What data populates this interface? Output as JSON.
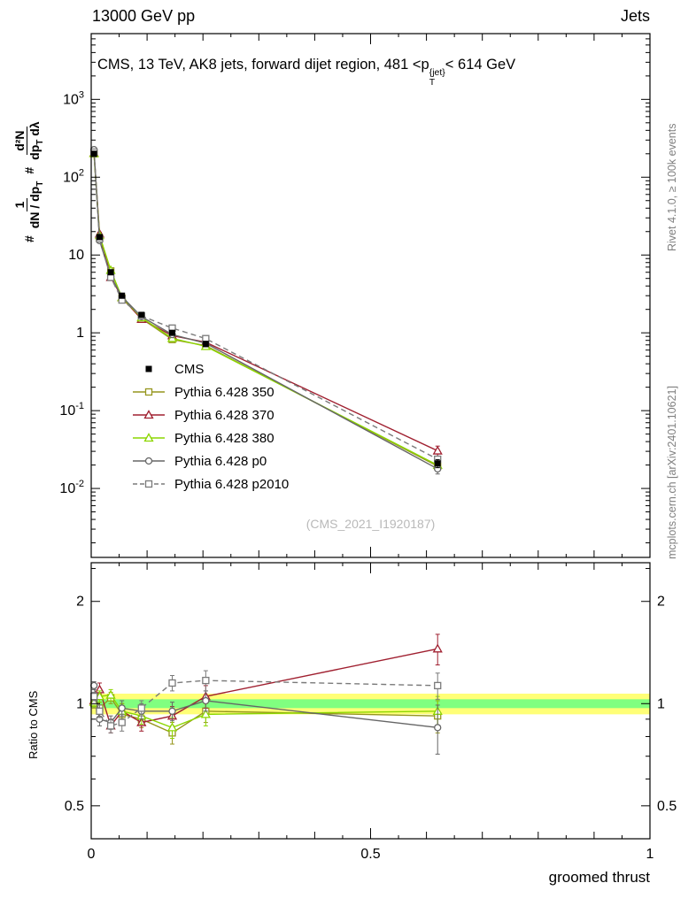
{
  "header": {
    "beam": "13000 GeV pp",
    "analysis": "Jets"
  },
  "title": {
    "prefix": "CMS, 13 TeV, AK8 jets, forward dijet region, 481 <p",
    "sup": "{jet}",
    "sub": "T",
    "suffix": "< 614 GeV"
  },
  "watermark": "(CMS_2021_I1920187)",
  "side": {
    "rivet": "Rivet 4.1.0, ≥ 100k events",
    "mcplots": "mcplots.cern.ch [arXiv:2401.10621]"
  },
  "ylabel_main": {
    "hash1": "#",
    "frac1_num": "1",
    "frac1_den_a": "dN / dp",
    "frac1_den_sub": "T",
    "hash2": "#",
    "frac2_num": "d²N",
    "frac2_den_a": "dp",
    "frac2_den_sub": "T",
    "frac2_den_b": " dλ"
  },
  "ylabel_ratio": "Ratio to CMS",
  "xlabel": "groomed thrust",
  "chart_data": {
    "type": "line",
    "title": "CMS, 13 TeV, AK8 jets, forward dijet region, 481 < pT{jet} < 614 GeV",
    "xlabel": "groomed thrust",
    "ylabel": "# 1/(dN/dpT) d²N/(dpT dλ)",
    "ylabel_ratio": "Ratio to CMS",
    "xlim": [
      0,
      1
    ],
    "x": [
      0.005,
      0.015,
      0.035,
      0.055,
      0.09,
      0.145,
      0.205,
      0.62
    ],
    "xticks": [
      {
        "v": 0,
        "label": "0"
      },
      {
        "v": 0.5,
        "label": "0.5"
      },
      {
        "v": 1,
        "label": "1"
      }
    ],
    "main": {
      "ylog": true,
      "ylim": [
        0.0013,
        7000
      ],
      "yticks": [
        {
          "v": 1000,
          "base": "10",
          "exp": "3"
        },
        {
          "v": 100,
          "base": "10",
          "exp": "2"
        },
        {
          "v": 10,
          "base": "10",
          "exp": ""
        },
        {
          "v": 1,
          "base": "1",
          "exp": ""
        },
        {
          "v": 0.1,
          "base": "10",
          "exp": "-1"
        },
        {
          "v": 0.01,
          "base": "10",
          "exp": "-2"
        }
      ]
    },
    "ratio": {
      "ylog": true,
      "ylim": [
        0.4,
        2.6
      ],
      "yticks": [
        {
          "v": 2,
          "label": "2"
        },
        {
          "v": 1,
          "label": "1"
        },
        {
          "v": 0.5,
          "label": "0.5"
        }
      ],
      "minor_ticks": [
        0.6,
        0.7,
        0.8,
        0.9,
        2.5
      ],
      "bands": {
        "outer": {
          "lo": 0.93,
          "hi": 1.07,
          "color": "#ffff77"
        },
        "inner": {
          "lo": 0.97,
          "hi": 1.03,
          "color": "#80ff80"
        }
      }
    },
    "cms": {
      "name": "CMS",
      "color": "#000000",
      "marker": "square-filled",
      "values": [
        200,
        17,
        6,
        3,
        1.7,
        1.0,
        0.72,
        0.021
      ],
      "rel_err": [
        0.03,
        0.03,
        0.04,
        0.04,
        0.05,
        0.06,
        0.08,
        0.12
      ]
    },
    "series": [
      {
        "name": "Pythia 6.428 350",
        "color": "#96961e",
        "marker": "square-open",
        "dash": "solid",
        "ratio": [
          1.0,
          0.97,
          1.04,
          0.93,
          0.9,
          0.82,
          0.95,
          0.92
        ],
        "err": [
          0.03,
          0.04,
          0.04,
          0.05,
          0.05,
          0.06,
          0.07,
          0.1
        ]
      },
      {
        "name": "Pythia 6.428 370",
        "color": "#a02030",
        "marker": "triangle-open",
        "dash": "solid",
        "ratio": [
          1.02,
          1.1,
          0.86,
          0.95,
          0.88,
          0.92,
          1.05,
          1.45
        ],
        "err": [
          0.03,
          0.05,
          0.04,
          0.05,
          0.05,
          0.06,
          0.08,
          0.15
        ]
      },
      {
        "name": "Pythia 6.428 380",
        "color": "#8cd600",
        "marker": "triangle-open",
        "dash": "solid",
        "ratio": [
          1.01,
          1.05,
          1.06,
          0.95,
          0.92,
          0.85,
          0.93,
          0.95
        ],
        "err": [
          0.03,
          0.04,
          0.04,
          0.05,
          0.05,
          0.06,
          0.07,
          0.1
        ]
      },
      {
        "name": "Pythia 6.428 p0",
        "color": "#666666",
        "marker": "circle-open",
        "dash": "solid",
        "ratio": [
          1.13,
          0.9,
          0.88,
          0.97,
          0.95,
          0.95,
          1.02,
          0.85
        ],
        "err": [
          0.03,
          0.04,
          0.04,
          0.05,
          0.05,
          0.06,
          0.07,
          0.14
        ]
      },
      {
        "name": "Pythia 6.428 p2010",
        "color": "#7a7a7a",
        "marker": "square-open",
        "dash": "dashed",
        "ratio": [
          1.05,
          0.95,
          0.86,
          0.88,
          0.97,
          1.15,
          1.17,
          1.13
        ],
        "err": [
          0.03,
          0.04,
          0.04,
          0.05,
          0.05,
          0.06,
          0.08,
          0.1
        ]
      }
    ]
  }
}
